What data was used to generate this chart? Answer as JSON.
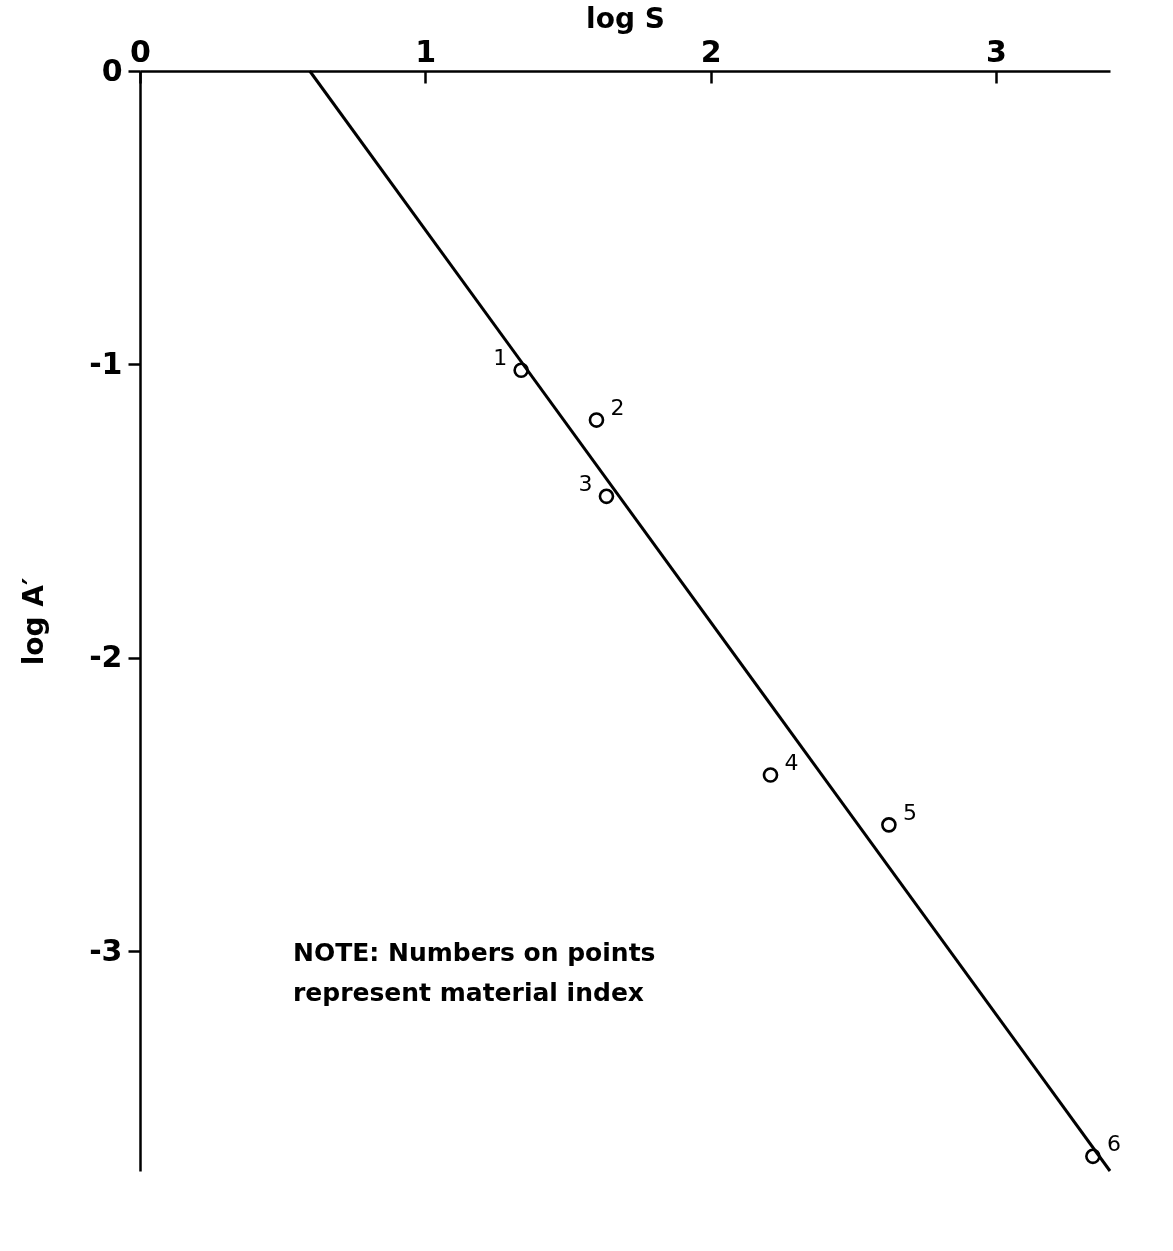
{
  "chart_data": {
    "type": "scatter",
    "xlabel": "log S",
    "ylabel": "log A′",
    "xlim": [
      0,
      3.4
    ],
    "ylim": [
      -3.75,
      0
    ],
    "xticks": [
      0,
      1,
      2,
      3
    ],
    "yticks": [
      0,
      -1,
      -2,
      -3
    ],
    "grid": false,
    "marker": "circle",
    "series": [
      {
        "color": "#000000",
        "x": [
          1.336,
          1.6,
          1.635,
          2.21,
          2.625,
          3.34
        ],
        "values": [
          -1.02,
          -1.19,
          -1.45,
          -2.4,
          -2.57,
          -3.7
        ]
      },
      {
        "type": "line",
        "color": "#000000",
        "marker": "none",
        "x": [
          0.595,
          3.4
        ],
        "values": [
          0,
          -3.75
        ]
      }
    ],
    "annotations": [
      {
        "text": "1",
        "x": 1.336,
        "y": -1.02
      },
      {
        "text": "2",
        "x": 1.6,
        "y": -1.19
      },
      {
        "text": "3",
        "x": 1.635,
        "y": -1.45
      },
      {
        "text": "4",
        "x": 2.21,
        "y": -2.4
      },
      {
        "text": "5",
        "x": 2.625,
        "y": -2.57
      },
      {
        "text": "6",
        "x": 3.34,
        "y": -3.7
      },
      "NOTE: Numbers on points represent material index"
    ]
  }
}
